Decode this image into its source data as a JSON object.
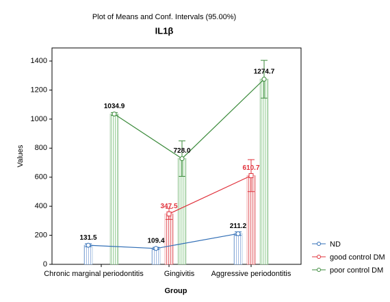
{
  "chart_data": {
    "type": "bar",
    "title": "Plot of Means and Conf. Intervals (95.00%)",
    "subtitle": "IL1β",
    "x_label": "Group",
    "y_label": "Values",
    "categories": [
      "Chronic marginal periodontitis",
      "Gingivitis",
      "Aggressive periodontitis"
    ],
    "series": [
      {
        "name": "ND",
        "color": "#2f6db5",
        "values": [
          131.5,
          109.4,
          211.2
        ],
        "errors": [
          10,
          8,
          12
        ],
        "value_labels": [
          "131.5",
          "109.4",
          "211.2"
        ]
      },
      {
        "name": "good control DM",
        "color": "#e0303a",
        "values": [
          null,
          347.5,
          610.7
        ],
        "errors": [
          null,
          38,
          110
        ],
        "value_labels": [
          null,
          "347.5",
          "610.7"
        ]
      },
      {
        "name": "poor control DM",
        "color": "#3a8a3a",
        "values": [
          1034.9,
          728.0,
          1274.7
        ],
        "errors": [
          10,
          122,
          130
        ],
        "value_labels": [
          "1034.9",
          "728.0",
          "1274.7"
        ]
      }
    ],
    "ylim": [
      0,
      1490
    ],
    "yticks": [
      0,
      200,
      400,
      600,
      800,
      1000,
      1200,
      1400
    ],
    "legend": "bottom-right"
  }
}
